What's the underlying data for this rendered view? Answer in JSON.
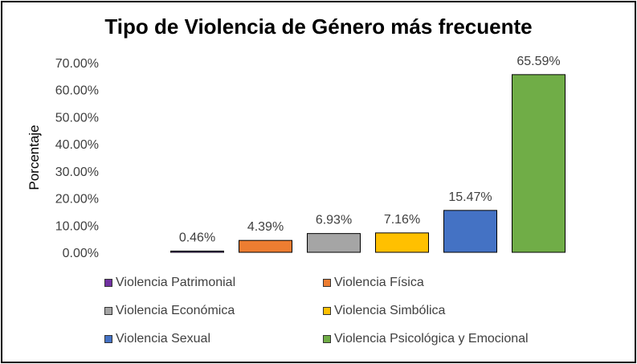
{
  "chart_data": {
    "type": "bar",
    "title": "Tipo de Violencia de Género más frecuente",
    "ylabel": "Porcentaje",
    "xlabel": "",
    "ylim": [
      0,
      70
    ],
    "yticks": [
      "0.00%",
      "10.00%",
      "20.00%",
      "30.00%",
      "40.00%",
      "50.00%",
      "60.00%",
      "70.00%"
    ],
    "grid": false,
    "legend_position": "bottom",
    "series": [
      {
        "name": "Violencia Patrimonial",
        "value": 0.46,
        "label": "0.46%",
        "color": "#7030A0"
      },
      {
        "name": "Violencia Física",
        "value": 4.39,
        "label": "4.39%",
        "color": "#ED7D31"
      },
      {
        "name": "Violencia Económica",
        "value": 6.93,
        "label": "6.93%",
        "color": "#A5A5A5"
      },
      {
        "name": "Violencia Simbólica",
        "value": 7.16,
        "label": "7.16%",
        "color": "#FFC000"
      },
      {
        "name": "Violencia Sexual",
        "value": 15.47,
        "label": "15.47%",
        "color": "#4472C4"
      },
      {
        "name": "Violencia Psicológica y Emocional",
        "value": 65.59,
        "label": "65.59%",
        "color": "#70AD47"
      }
    ]
  }
}
